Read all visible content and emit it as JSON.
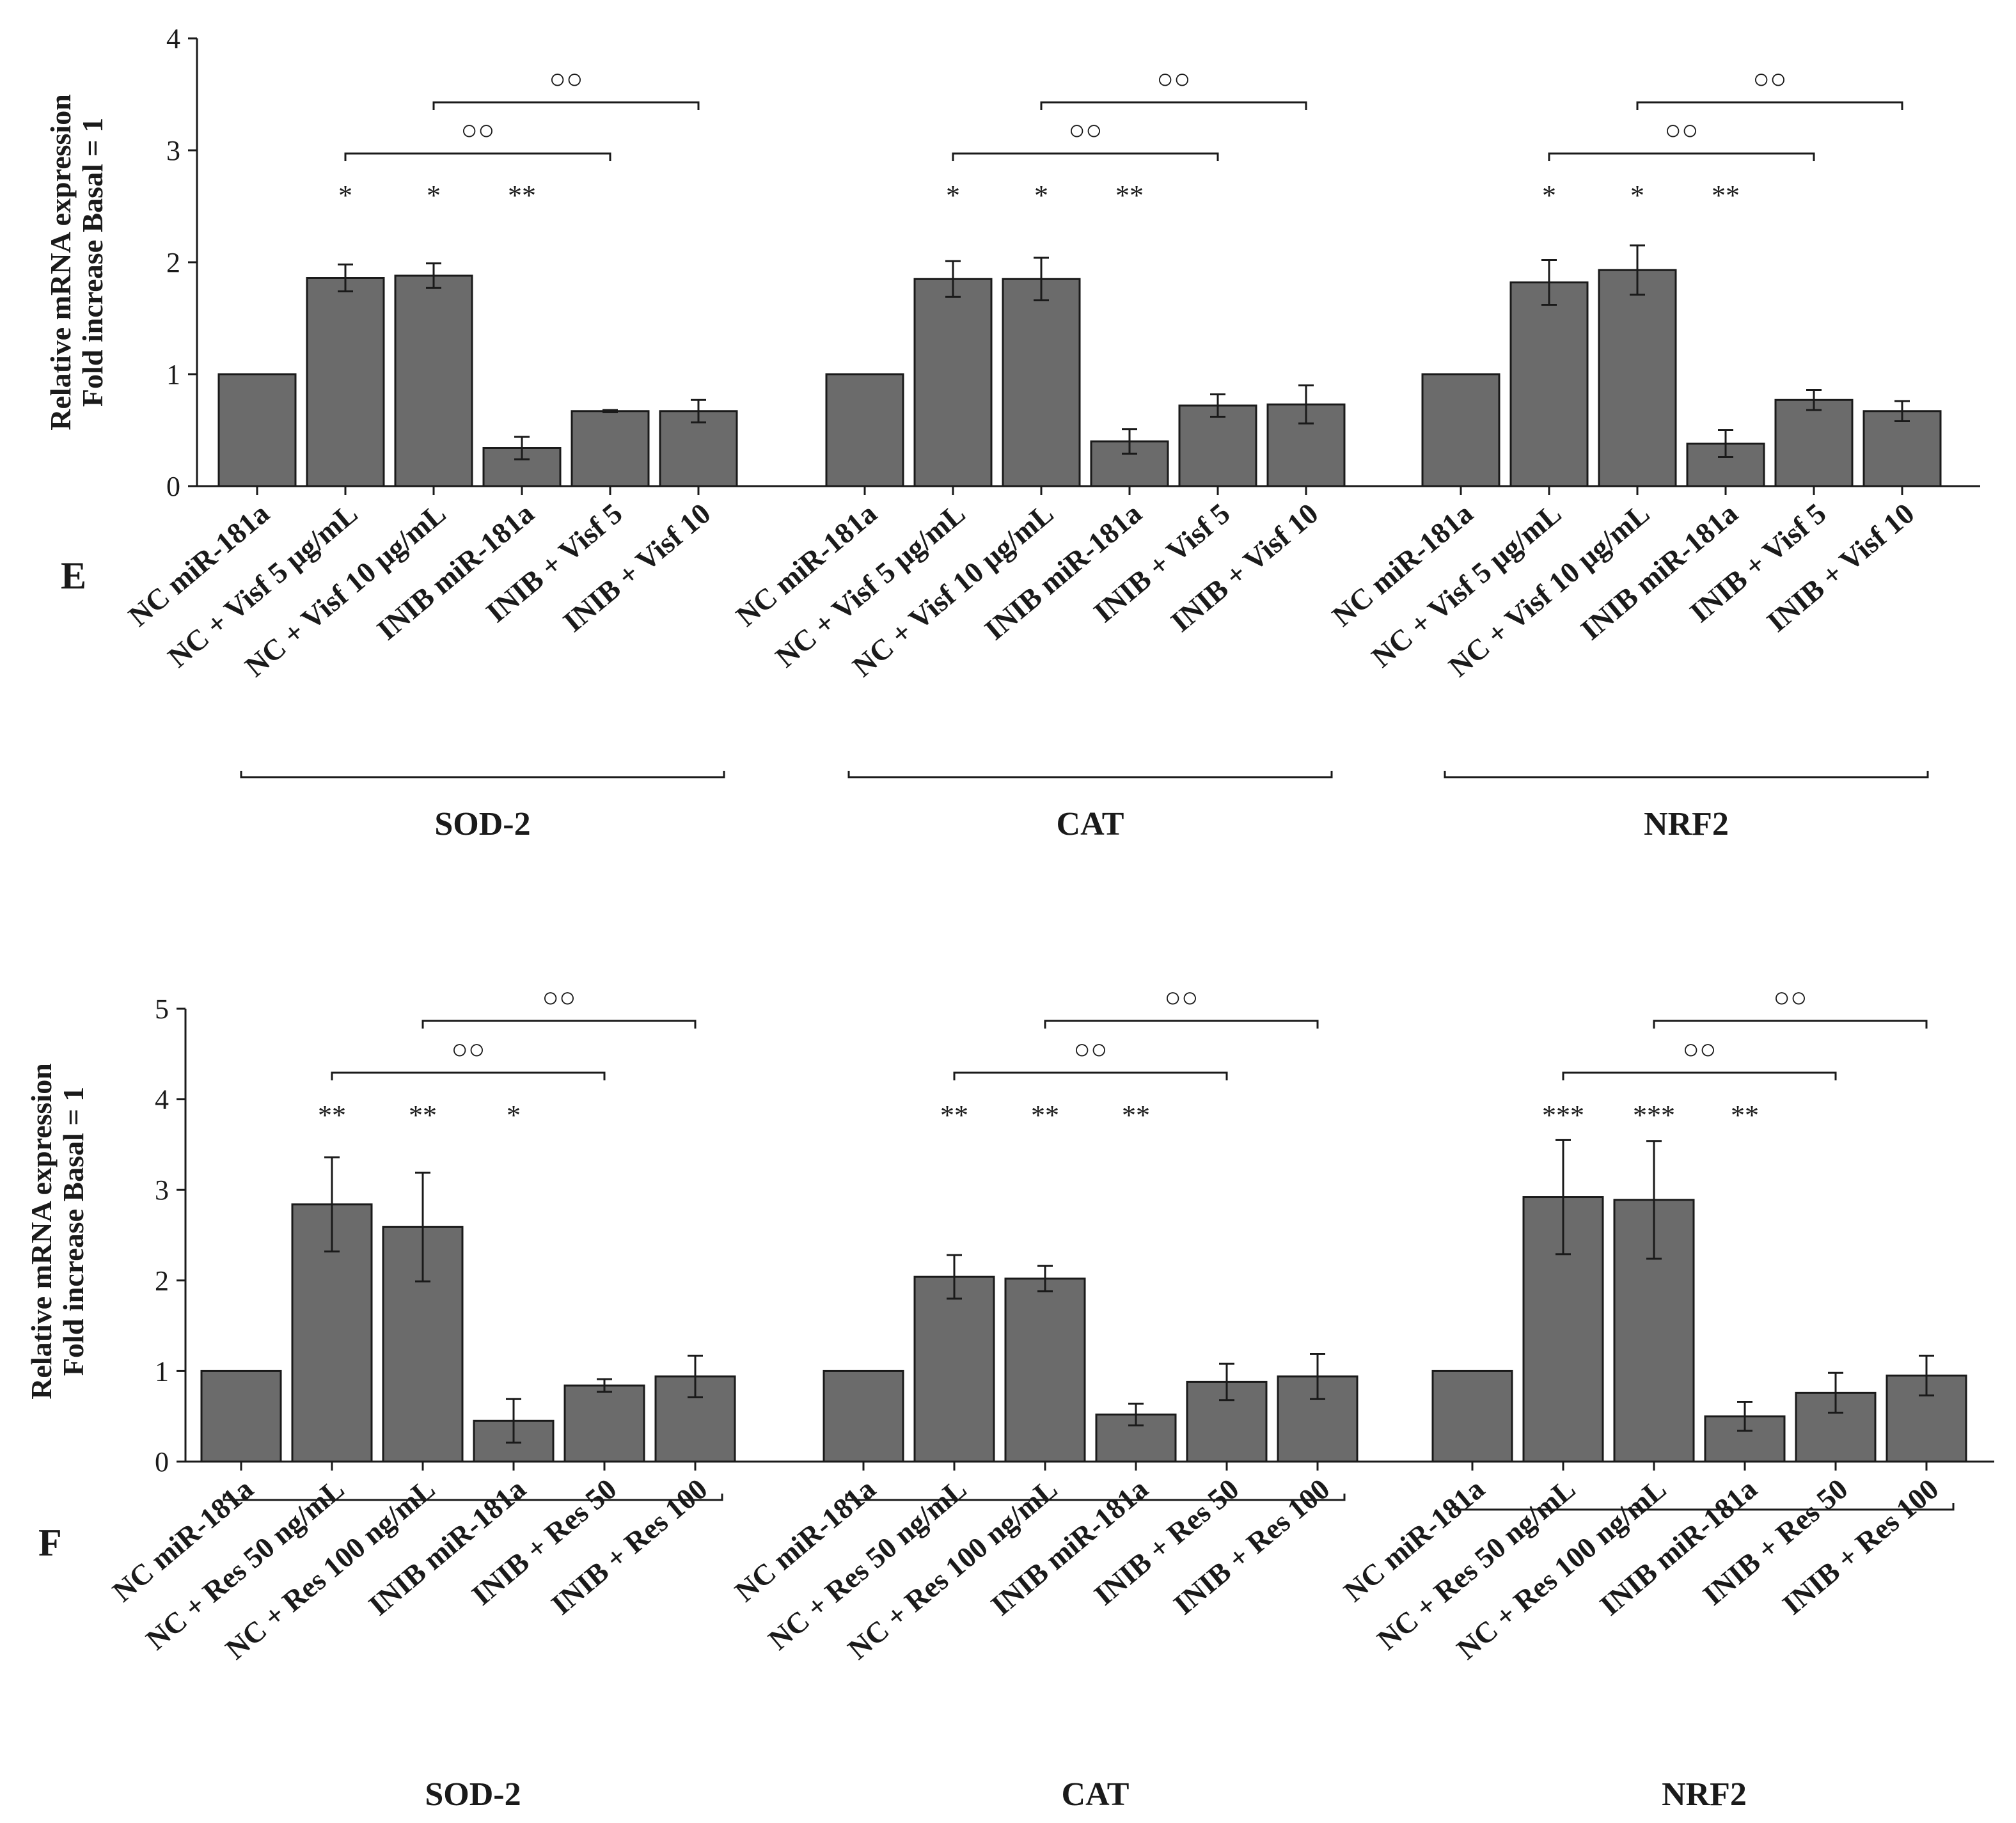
{
  "colors": {
    "bar": "#6b6b6b",
    "stroke": "#1a1a1a"
  },
  "chart_data": [
    {
      "type": "bar",
      "panel_label": "E",
      "ylabel": [
        "Relative mRNA expression",
        "Fold increase Basal = 1"
      ],
      "ylim": [
        0,
        4
      ],
      "yticks": [
        "0",
        "1",
        "2",
        "3",
        "4"
      ],
      "groups": [
        {
          "name": "SOD-2",
          "categories": [
            "NC miR-181a",
            "NC + Visf 5 μg/mL",
            "NC + Visf 10 μg/mL",
            "INIB miR-181a",
            "INIB + Visf 5",
            "INIB + Visf 10"
          ],
          "values": [
            1.0,
            1.86,
            1.88,
            0.34,
            0.67,
            0.67
          ],
          "errors": [
            0,
            0.12,
            0.11,
            0.1,
            0.01,
            0.1
          ],
          "sig": [
            "",
            "*",
            "*",
            "**",
            "",
            ""
          ],
          "brackets": [
            {
              "from": 1,
              "to": 4,
              "label": "○○"
            },
            {
              "from": 2,
              "to": 5,
              "label": "○○"
            }
          ]
        },
        {
          "name": "CAT",
          "categories": [
            "NC miR-181a",
            "NC + Visf 5 μg/mL",
            "NC + Visf 10 μg/mL",
            "INIB miR-181a",
            "INIB + Visf 5",
            "INIB + Visf 10"
          ],
          "values": [
            1.0,
            1.85,
            1.85,
            0.4,
            0.72,
            0.73
          ],
          "errors": [
            0,
            0.16,
            0.19,
            0.11,
            0.1,
            0.17
          ],
          "sig": [
            "",
            "*",
            "*",
            "**",
            "",
            ""
          ],
          "brackets": [
            {
              "from": 1,
              "to": 4,
              "label": "○○"
            },
            {
              "from": 2,
              "to": 5,
              "label": "○○"
            }
          ]
        },
        {
          "name": "NRF2",
          "categories": [
            "NC miR-181a",
            "NC + Visf 5 μg/mL",
            "NC + Visf 10 μg/mL",
            "INIB miR-181a",
            "INIB + Visf 5",
            "INIB + Visf 10"
          ],
          "values": [
            1.0,
            1.82,
            1.93,
            0.38,
            0.77,
            0.67
          ],
          "errors": [
            0,
            0.2,
            0.22,
            0.12,
            0.09,
            0.09
          ],
          "sig": [
            "",
            "*",
            "*",
            "**",
            "",
            ""
          ],
          "brackets": [
            {
              "from": 1,
              "to": 4,
              "label": "○○"
            },
            {
              "from": 2,
              "to": 5,
              "label": "○○"
            }
          ]
        }
      ]
    },
    {
      "type": "bar",
      "panel_label": "F",
      "ylabel": [
        "Relative mRNA expression",
        "Fold increase Basal = 1"
      ],
      "ylim": [
        0,
        5
      ],
      "yticks": [
        "0",
        "1",
        "2",
        "3",
        "4",
        "5"
      ],
      "groups": [
        {
          "name": "SOD-2",
          "categories": [
            "NC miR-181a",
            "NC + Res 50 ng/mL",
            "NC + Res 100 ng/mL",
            "INIB miR-181a",
            "INIB + Res 50",
            "INIB + Res 100"
          ],
          "values": [
            1.0,
            2.84,
            2.59,
            0.45,
            0.84,
            0.94
          ],
          "errors": [
            0,
            0.52,
            0.6,
            0.24,
            0.07,
            0.23
          ],
          "sig": [
            "",
            "**",
            "**",
            "*",
            "",
            ""
          ],
          "brackets": [
            {
              "from": 1,
              "to": 4,
              "label": "○○"
            },
            {
              "from": 2,
              "to": 5,
              "label": "○○"
            }
          ]
        },
        {
          "name": "CAT",
          "categories": [
            "NC miR-181a",
            "NC + Res 50 ng/mL",
            "NC + Res 100 ng/mL",
            "INIB miR-181a",
            "INIB + Res 50",
            "INIB + Res 100"
          ],
          "values": [
            1.0,
            2.04,
            2.02,
            0.52,
            0.88,
            0.94
          ],
          "errors": [
            0,
            0.24,
            0.14,
            0.12,
            0.2,
            0.25
          ],
          "sig": [
            "",
            "**",
            "**",
            "**",
            "",
            ""
          ],
          "brackets": [
            {
              "from": 1,
              "to": 4,
              "label": "○○"
            },
            {
              "from": 2,
              "to": 5,
              "label": "○○"
            }
          ]
        },
        {
          "name": "NRF2",
          "categories": [
            "NC miR-181a",
            "NC + Res 50 ng/mL",
            "NC + Res 100 ng/mL",
            "INIB miR-181a",
            "INIB + Res 50",
            "INIB + Res 100"
          ],
          "values": [
            1.0,
            2.92,
            2.89,
            0.5,
            0.76,
            0.95
          ],
          "errors": [
            0,
            0.63,
            0.65,
            0.16,
            0.22,
            0.22
          ],
          "sig": [
            "",
            "***",
            "***",
            "**",
            "",
            ""
          ],
          "brackets": [
            {
              "from": 1,
              "to": 4,
              "label": "○○"
            },
            {
              "from": 2,
              "to": 5,
              "label": "○○"
            }
          ]
        }
      ]
    }
  ]
}
